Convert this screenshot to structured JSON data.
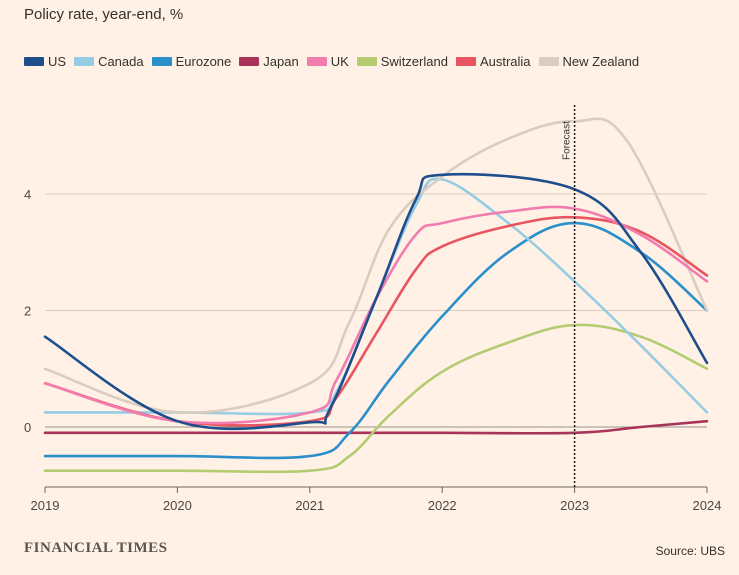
{
  "title": "Policy rate, year-end, %",
  "brand": "FINANCIAL TIMES",
  "source": "Source: UBS",
  "forecast_label": "Forecast",
  "chart_data": {
    "type": "line",
    "title": "Policy rate, year-end, %",
    "xlabel": "",
    "ylabel": "",
    "xlim": [
      2019,
      2024
    ],
    "ylim": [
      -1,
      5.5
    ],
    "x_ticks": [
      "2019",
      "2020",
      "2021",
      "2022",
      "2023",
      "2024"
    ],
    "y_ticks": [
      "0",
      "2",
      "4"
    ],
    "y_tick_values": [
      0,
      2,
      4
    ],
    "forecast_start": 2023,
    "legend_position": "top",
    "series": [
      {
        "name": "US",
        "color": "#1F4E8C",
        "x": [
          2019,
          2020,
          2021,
          2021.15,
          2021.5,
          2021.8,
          2022,
          2023,
          2023.5,
          2024
        ],
        "y": [
          1.55,
          0.1,
          0.08,
          0.3,
          2.2,
          3.9,
          4.33,
          4.08,
          3.0,
          1.1
        ]
      },
      {
        "name": "Canada",
        "color": "#96CCE4",
        "x": [
          2019,
          2020,
          2021,
          2021.2,
          2021.5,
          2021.8,
          2022,
          2022.5,
          2023,
          2023.5,
          2024
        ],
        "y": [
          0.25,
          0.25,
          0.25,
          0.6,
          2.2,
          3.8,
          4.25,
          3.5,
          2.5,
          1.4,
          0.25
        ]
      },
      {
        "name": "Eurozone",
        "color": "#2B8FCB",
        "x": [
          2019,
          2020,
          2021,
          2021.3,
          2021.6,
          2022,
          2022.5,
          2023,
          2023.5,
          2024
        ],
        "y": [
          -0.5,
          -0.5,
          -0.5,
          -0.1,
          0.8,
          1.9,
          3.0,
          3.5,
          3.0,
          2.0
        ]
      },
      {
        "name": "Japan",
        "color": "#A8345A",
        "x": [
          2019,
          2020,
          2021,
          2022,
          2023,
          2023.5,
          2024
        ],
        "y": [
          -0.1,
          -0.1,
          -0.1,
          -0.1,
          -0.1,
          0.0,
          0.1
        ]
      },
      {
        "name": "UK",
        "color": "#F27CAE",
        "x": [
          2019,
          2020,
          2021,
          2021.2,
          2021.5,
          2021.8,
          2022,
          2022.5,
          2023,
          2023.5,
          2024
        ],
        "y": [
          0.75,
          0.1,
          0.25,
          0.8,
          2.2,
          3.3,
          3.5,
          3.7,
          3.75,
          3.3,
          2.5
        ]
      },
      {
        "name": "Switzerland",
        "color": "#B4CB72",
        "x": [
          2019,
          2020,
          2021,
          2021.3,
          2021.6,
          2022,
          2022.5,
          2023,
          2023.5,
          2024
        ],
        "y": [
          -0.75,
          -0.75,
          -0.75,
          -0.5,
          0.2,
          0.95,
          1.45,
          1.75,
          1.55,
          1.0
        ]
      },
      {
        "name": "Australia",
        "color": "#E85560",
        "x": [
          2019,
          2020,
          2021,
          2021.2,
          2021.5,
          2021.8,
          2022,
          2022.5,
          2023,
          2023.5,
          2024
        ],
        "y": [
          0.75,
          0.1,
          0.1,
          0.5,
          1.6,
          2.7,
          3.1,
          3.45,
          3.6,
          3.35,
          2.6
        ]
      },
      {
        "name": "New Zealand",
        "color": "#D9CCC1",
        "x": [
          2019,
          2020,
          2021,
          2021.3,
          2021.6,
          2022,
          2022.5,
          2023,
          2023.4,
          2024
        ],
        "y": [
          1.0,
          0.25,
          0.75,
          1.8,
          3.4,
          4.3,
          4.95,
          5.25,
          4.9,
          2.0
        ]
      }
    ]
  }
}
